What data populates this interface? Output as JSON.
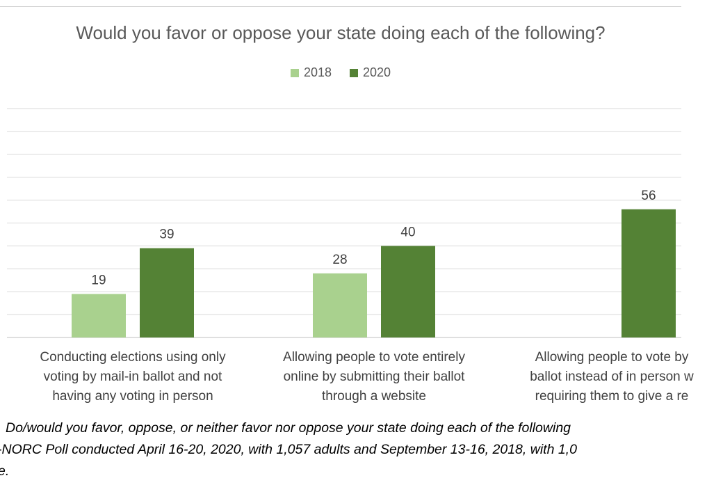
{
  "chart_data": {
    "type": "bar",
    "title": "Would you favor or oppose your state doing each of the following?",
    "categories": [
      [
        "Conducting elections using only",
        "voting by mail-in ballot and not",
        "having any voting in person"
      ],
      [
        "Allowing people to vote entirely",
        "online by submitting their ballot",
        "through a website"
      ],
      [
        "Allowing people to vote by",
        "ballot instead of in person w",
        "requiring them to give a re"
      ]
    ],
    "series": [
      {
        "name": "2018",
        "color": "#a9d18e",
        "values": [
          19,
          28,
          null
        ]
      },
      {
        "name": "2020",
        "color": "#548235",
        "values": [
          39,
          40,
          56
        ]
      }
    ],
    "ylim": [
      0,
      100
    ],
    "grid": true,
    "legend": "top-center",
    "data_labels": true
  },
  "footnote": {
    "lines": [
      "Do/would you favor, oppose, or neither favor nor oppose your state doing each of the following",
      "-NORC Poll conducted April 16-20, 2020, with 1,057 adults and September 13-16, 2018, with 1,0",
      "e."
    ]
  }
}
